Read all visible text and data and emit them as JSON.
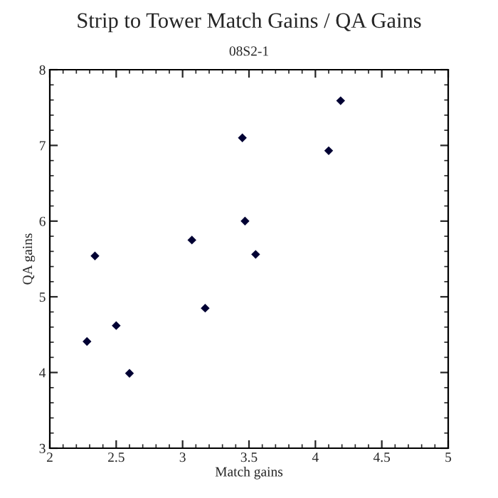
{
  "chart_data": {
    "type": "scatter",
    "title": "Strip to Tower Match Gains / QA Gains",
    "subtitle": "08S2-1",
    "xlabel": "Match gains",
    "ylabel": "QA gains",
    "x": [
      2.28,
      2.34,
      2.5,
      2.6,
      3.07,
      3.17,
      3.45,
      3.47,
      3.55,
      4.1,
      4.19
    ],
    "series": [
      {
        "color": "#000033",
        "values": [
          4.41,
          5.54,
          4.62,
          3.99,
          5.75,
          4.85,
          7.1,
          6.0,
          5.56,
          6.93,
          7.59
        ]
      }
    ],
    "marker": "diamond",
    "xlim": [
      2,
      5
    ],
    "ylim": [
      3,
      8
    ],
    "xticks": [
      2,
      2.5,
      3,
      3.5,
      4,
      4.5,
      5
    ],
    "yticks": [
      3,
      4,
      5,
      6,
      7,
      8
    ],
    "grid": false,
    "legend": false
  }
}
